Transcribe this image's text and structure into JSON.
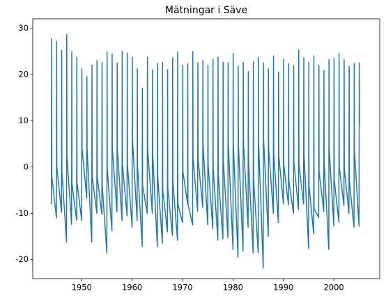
{
  "chart_data": {
    "type": "line",
    "title": "Mätningar i Säve",
    "x": [
      1944,
      1944.04,
      1944.08,
      1945,
      1945.04,
      1945.08,
      1946,
      1946.04,
      1946.08,
      1947,
      1947.04,
      1947.08,
      1948,
      1948.04,
      1948.08,
      1949,
      1949.04,
      1949.08,
      1950,
      1950.04,
      1950.08,
      1951,
      1951.04,
      1951.08,
      1952,
      1952.04,
      1952.08,
      1953,
      1953.04,
      1953.08,
      1954,
      1954.04,
      1954.08,
      1955,
      1955.04,
      1955.08,
      1956,
      1956.04,
      1956.08,
      1957,
      1957.04,
      1957.08,
      1958,
      1958.04,
      1958.08,
      1959,
      1959.04,
      1959.08,
      1960,
      1960.04,
      1960.08,
      1961,
      1961.04,
      1961.08,
      1962,
      1962.04,
      1962.08,
      1963,
      1963.04,
      1963.08,
      1964,
      1964.04,
      1964.08,
      1965,
      1965.04,
      1965.08,
      1966,
      1966.04,
      1966.08,
      1967,
      1967.04,
      1967.08,
      1968,
      1968.04,
      1968.08,
      1969,
      1969.04,
      1969.08,
      1970,
      1970.04,
      1970.08,
      1971,
      1971.04,
      1971.08,
      1972,
      1972.04,
      1972.08,
      1973,
      1973.04,
      1973.08,
      1974,
      1974.04,
      1974.08,
      1975,
      1975.04,
      1975.08,
      1976,
      1976.04,
      1976.08,
      1977,
      1977.04,
      1977.08,
      1978,
      1978.04,
      1978.08,
      1979,
      1979.04,
      1979.08,
      1980,
      1980.04,
      1980.08,
      1981,
      1981.04,
      1981.08,
      1982,
      1982.04,
      1982.08,
      1983,
      1983.04,
      1983.08,
      1984,
      1984.04,
      1984.08,
      1985,
      1985.04,
      1985.08,
      1986,
      1986.04,
      1986.08,
      1987,
      1987.04,
      1987.08,
      1988,
      1988.04,
      1988.08,
      1989,
      1989.04,
      1989.08,
      1990,
      1990.04,
      1990.08,
      1991,
      1991.04,
      1991.08,
      1992,
      1992.04,
      1992.08,
      1993,
      1993.04,
      1993.08,
      1994,
      1994.04,
      1994.08,
      1995,
      1995.04,
      1995.08,
      1996,
      1996.04,
      1996.08,
      1997,
      1997.04,
      1997.08,
      1998,
      1998.04,
      1998.08,
      1999,
      1999.04,
      1999.08,
      2000,
      2000.04,
      2000.08,
      2001,
      2001.04,
      2001.08,
      2002,
      2002.04,
      2002.08,
      2003,
      2003.04,
      2003.08,
      2004,
      2004.04,
      2004.08,
      2005,
      2005.04,
      2005.08
    ],
    "series": [
      {
        "name": "Säve",
        "color": "#1f77b4",
        "values": [
          -8,
          27.7,
          -2,
          -11,
          27.1,
          0,
          -9.8,
          25.2,
          -1,
          -16.2,
          28.6,
          2.4,
          -12.4,
          24.9,
          -3.6,
          -11.5,
          23.7,
          -3.3,
          -11.5,
          21.2,
          4,
          -6.7,
          19.5,
          3.8,
          -16.2,
          22,
          -1.8,
          -10,
          23,
          -2,
          -10.2,
          22.5,
          -4,
          -18.6,
          24.9,
          -0.5,
          -13.8,
          24.4,
          4,
          -9.7,
          22.5,
          3.9,
          -11.6,
          25,
          0.6,
          -10.5,
          24.6,
          0.5,
          -13,
          23.7,
          5.8,
          -11.6,
          21.2,
          0.2,
          -17.2,
          17,
          -4,
          -10,
          23.7,
          4,
          -10,
          21,
          3,
          -17.2,
          22.4,
          -2,
          -16.5,
          22.5,
          -5,
          -14,
          21,
          -4.6,
          -14.8,
          23.6,
          -3,
          -15.8,
          24.9,
          -8,
          -12,
          22,
          -1,
          -8,
          22.3,
          -8,
          -12.5,
          24.9,
          2,
          -9.5,
          22.5,
          1.9,
          -8.7,
          23,
          4.6,
          -12.5,
          22,
          0.5,
          -13.4,
          23.3,
          -0.2,
          -15.8,
          23.7,
          -1.6,
          -15.5,
          22.6,
          1.6,
          -15.3,
          22.5,
          5,
          -17.8,
          24.5,
          4.6,
          -19.5,
          21.8,
          5,
          -18.2,
          22.6,
          5.5,
          -13,
          20.6,
          1.5,
          -18.6,
          22.7,
          -2.5,
          -18.5,
          23.7,
          5.5,
          -21.8,
          22.5,
          6,
          -15,
          21.2,
          4,
          -10,
          24,
          3,
          -12,
          20.5,
          2.5,
          -8,
          23.3,
          0.5,
          -8.2,
          22.3,
          -3,
          -10,
          21.9,
          1,
          -9.2,
          25.3,
          0.7,
          -8,
          23.6,
          3,
          -17.6,
          22.6,
          -3.9,
          -14.4,
          24,
          -9,
          -10.9,
          22,
          -1,
          -9.6,
          20.8,
          1,
          -17.8,
          23.2,
          3.9,
          -12.8,
          23.4,
          -2.8,
          -11.9,
          24.5,
          0,
          -8.3,
          23.2,
          -0.4,
          -10,
          21.7,
          -3,
          -13,
          22.4,
          3.7,
          -12.8,
          22.5,
          9.2
        ]
      }
    ],
    "xlim": [
      1940.3,
      2009.1
    ],
    "xticks": [
      1950,
      1960,
      1970,
      1980,
      1990,
      2000
    ],
    "ylim": [
      -24.1,
      32.0
    ],
    "yticks": [
      -20,
      -10,
      0,
      10,
      20,
      30
    ]
  }
}
